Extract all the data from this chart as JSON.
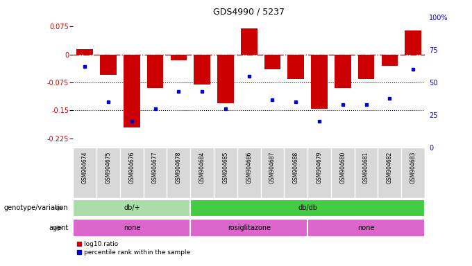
{
  "title": "GDS4990 / 5237",
  "samples": [
    "GSM904674",
    "GSM904675",
    "GSM904676",
    "GSM904677",
    "GSM904678",
    "GSM904684",
    "GSM904685",
    "GSM904686",
    "GSM904687",
    "GSM904688",
    "GSM904679",
    "GSM904680",
    "GSM904681",
    "GSM904682",
    "GSM904683"
  ],
  "log10_ratio": [
    0.015,
    -0.055,
    -0.195,
    -0.09,
    -0.015,
    -0.08,
    -0.13,
    0.07,
    -0.04,
    -0.065,
    -0.145,
    -0.09,
    -0.065,
    -0.03,
    0.065
  ],
  "percentile": [
    62,
    35,
    20,
    30,
    43,
    43,
    30,
    55,
    37,
    35,
    20,
    33,
    33,
    38,
    60
  ],
  "ylim_left": [
    -0.25,
    0.1
  ],
  "ylim_right": [
    0,
    100
  ],
  "yticks_left": [
    0.075,
    0,
    -0.075,
    -0.15,
    -0.225
  ],
  "yticks_right": [
    100,
    75,
    50,
    25,
    0
  ],
  "bar_color": "#cc0000",
  "dot_color": "#0000cc",
  "hline_color": "#cc0000",
  "dotline_color": "#000000",
  "plot_bg_color": "#ffffff",
  "label_bg_color": "#d8d8d8",
  "genotype_groups": [
    {
      "label": "db/+",
      "start": 0,
      "end": 5,
      "color": "#aaddaa"
    },
    {
      "label": "db/db",
      "start": 5,
      "end": 15,
      "color": "#44cc44"
    }
  ],
  "agent_groups": [
    {
      "label": "none",
      "start": 0,
      "end": 5,
      "color": "#dd66cc"
    },
    {
      "label": "rosiglitazone",
      "start": 5,
      "end": 10,
      "color": "#dd66cc"
    },
    {
      "label": "none",
      "start": 10,
      "end": 15,
      "color": "#dd66cc"
    }
  ],
  "genotype_label": "genotype/variation",
  "agent_label": "agent",
  "legend_log10": "log10 ratio",
  "legend_pct": "percentile rank within the sample",
  "background_color": "#ffffff"
}
